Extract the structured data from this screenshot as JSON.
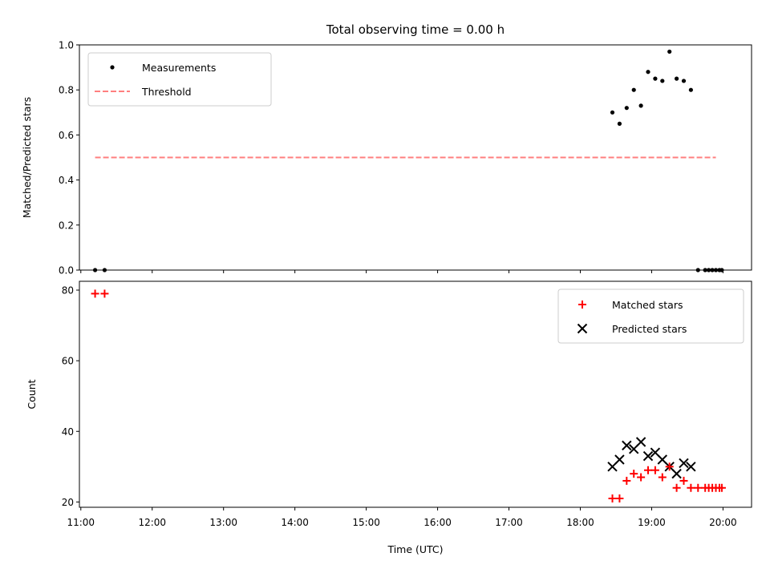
{
  "title": "Total observing time = 0.00 h",
  "chart_data": [
    {
      "type": "scatter",
      "ylabel": "Matched/Predicted stars",
      "xlabel": "",
      "ylim": [
        0,
        1.0
      ],
      "xlim_hours": [
        10.98,
        20.4
      ],
      "yticks": [
        0.0,
        0.2,
        0.4,
        0.6,
        0.8,
        1.0
      ],
      "ytick_labels": [
        "0.0",
        "0.2",
        "0.4",
        "0.6",
        "0.8",
        "1.0"
      ],
      "legend": {
        "placement": "upper-left",
        "entries": [
          "Measurements",
          "Threshold"
        ]
      },
      "colors": {
        "measurements": "#000000",
        "threshold": "#ff7f7f"
      },
      "series": [
        {
          "name": "Measurements",
          "marker": "dot",
          "x": [
            "11:12",
            "11:20",
            "18:27",
            "18:33",
            "18:39",
            "18:45",
            "18:51",
            "18:57",
            "19:03",
            "19:09",
            "19:15",
            "19:21",
            "19:27",
            "19:33",
            "19:39",
            "19:45",
            "19:51",
            "19:57"
          ],
          "y": [
            0.0,
            0.0,
            0.7,
            0.65,
            0.72,
            0.8,
            0.73,
            0.88,
            0.85,
            0.84,
            0.97,
            0.85,
            0.84,
            0.8,
            0.0,
            0.0,
            0.0,
            0.0
          ]
        },
        {
          "name": "Measurements",
          "marker": "dot",
          "x": [
            "19:48",
            "19:54",
            "19:59"
          ],
          "y": [
            0.0,
            0.0,
            0.0
          ]
        },
        {
          "name": "Threshold",
          "style": "dashed",
          "x": [
            "11:12",
            "19:54"
          ],
          "y": [
            0.5,
            0.5
          ]
        }
      ]
    },
    {
      "type": "scatter",
      "ylabel": "Count",
      "xlabel": "Time (UTC)",
      "ylim": [
        18.5,
        82.5
      ],
      "yticks": [
        20,
        40,
        60,
        80
      ],
      "ytick_labels": [
        "20",
        "40",
        "60",
        "80"
      ],
      "xtick_labels": [
        "11:00",
        "12:00",
        "13:00",
        "14:00",
        "15:00",
        "16:00",
        "17:00",
        "18:00",
        "19:00",
        "20:00"
      ],
      "legend": {
        "placement": "upper-right",
        "entries": [
          "Matched stars",
          "Predicted stars"
        ]
      },
      "colors": {
        "matched": "#ff0000",
        "predicted": "#000000"
      },
      "series": [
        {
          "name": "Matched stars",
          "marker": "plus",
          "x": [
            "11:12",
            "11:20",
            "18:27",
            "18:33",
            "18:39",
            "18:45",
            "18:51",
            "18:57",
            "19:03",
            "19:09",
            "19:15",
            "19:21",
            "19:27",
            "19:33",
            "19:39",
            "19:45",
            "19:51",
            "19:57",
            "19:48",
            "19:54",
            "19:59"
          ],
          "y": [
            79,
            79,
            21,
            21,
            26,
            28,
            27,
            29,
            29,
            27,
            30,
            24,
            26,
            24,
            24,
            24,
            24,
            24,
            24,
            24,
            24
          ]
        },
        {
          "name": "Predicted stars",
          "marker": "x",
          "x": [
            "18:27",
            "18:33",
            "18:39",
            "18:45",
            "18:51",
            "18:57",
            "19:03",
            "19:09",
            "19:15",
            "19:21",
            "19:27",
            "19:33"
          ],
          "y": [
            30,
            32,
            36,
            35,
            37,
            33,
            34,
            32,
            30,
            28,
            31,
            30
          ]
        }
      ]
    }
  ]
}
